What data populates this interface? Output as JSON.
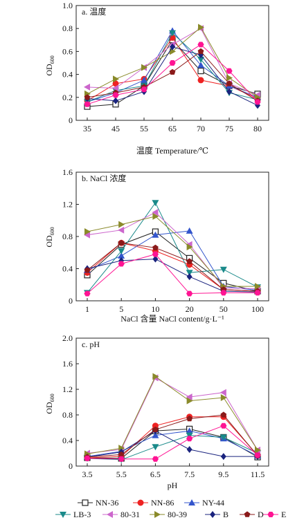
{
  "legend": {
    "entries": [
      {
        "name": "NN-36",
        "color": "#222222",
        "marker": "square-open"
      },
      {
        "name": "NN-86",
        "color": "#ee2222",
        "marker": "circle"
      },
      {
        "name": "NY-44",
        "color": "#3355cc",
        "marker": "triangle-up"
      },
      {
        "name": "LB-3",
        "color": "#1a8a8a",
        "marker": "triangle-down"
      },
      {
        "name": "80-31",
        "color": "#cc66cc",
        "marker": "triangle-left"
      },
      {
        "name": "80-39",
        "color": "#8a8a2a",
        "marker": "triangle-right"
      },
      {
        "name": "B",
        "color": "#1a237e",
        "marker": "diamond"
      },
      {
        "name": "D",
        "color": "#8b1a1a",
        "marker": "pentagon"
      },
      {
        "name": "E",
        "color": "#ff1493",
        "marker": "hexagon"
      }
    ]
  },
  "chart_data": [
    {
      "type": "line",
      "panel_label": "a. 温度",
      "xlabel": "温度 Temperature/℃",
      "ylabel": "OD",
      "ylabel_sub": "600",
      "x": [
        35,
        45,
        55,
        65,
        70,
        75,
        80
      ],
      "xticks": [
        "35",
        "45",
        "55",
        "65",
        "70",
        "75",
        "80"
      ],
      "ylim": [
        0,
        1.0
      ],
      "yticks": [
        "0",
        "0.2",
        "0.4",
        "0.6",
        "0.8",
        "1.0"
      ],
      "series": [
        {
          "name": "NN-36",
          "values": [
            0.12,
            0.14,
            0.3,
            0.7,
            0.43,
            0.3,
            0.23
          ]
        },
        {
          "name": "NN-86",
          "values": [
            0.17,
            0.32,
            0.36,
            0.72,
            0.35,
            0.3,
            0.19
          ]
        },
        {
          "name": "NY-44",
          "values": [
            0.16,
            0.24,
            0.35,
            0.78,
            0.48,
            0.3,
            0.2
          ]
        },
        {
          "name": "LB-3",
          "values": [
            0.16,
            0.26,
            0.3,
            0.76,
            0.53,
            0.24,
            0.18
          ]
        },
        {
          "name": "80-31",
          "values": [
            0.29,
            0.28,
            0.46,
            0.66,
            0.8,
            0.32,
            0.22
          ]
        },
        {
          "name": "80-39",
          "values": [
            0.23,
            0.36,
            0.46,
            0.6,
            0.81,
            0.37,
            0.2
          ]
        },
        {
          "name": "B",
          "values": [
            0.19,
            0.17,
            0.25,
            0.64,
            0.57,
            0.25,
            0.13
          ]
        },
        {
          "name": "D",
          "values": [
            0.2,
            0.24,
            0.29,
            0.42,
            0.6,
            0.32,
            0.17
          ]
        },
        {
          "name": "E",
          "values": [
            0.14,
            0.22,
            0.27,
            0.5,
            0.66,
            0.43,
            0.16
          ]
        }
      ]
    },
    {
      "type": "line",
      "panel_label": "b. NaCl 浓度",
      "xlabel": "NaCl 含量 NaCl content/g·L⁻¹",
      "ylabel": "OD",
      "ylabel_sub": "600",
      "x": [
        1,
        5,
        10,
        20,
        50,
        100
      ],
      "xticks": [
        "1",
        "5",
        "10",
        "20",
        "50",
        "100"
      ],
      "ylim": [
        0,
        1.6
      ],
      "yticks": [
        "0",
        "0.4",
        "0.8",
        "1.2",
        "1.6"
      ],
      "series": [
        {
          "name": "NN-36",
          "values": [
            0.32,
            0.7,
            0.86,
            0.53,
            0.22,
            0.12
          ]
        },
        {
          "name": "NN-86",
          "values": [
            0.35,
            0.72,
            0.62,
            0.45,
            0.14,
            0.12
          ]
        },
        {
          "name": "NY-44",
          "values": [
            0.38,
            0.56,
            0.82,
            0.87,
            0.18,
            0.13
          ]
        },
        {
          "name": "LB-3",
          "values": [
            0.1,
            0.62,
            1.22,
            0.35,
            0.39,
            0.17
          ]
        },
        {
          "name": "80-31",
          "values": [
            0.82,
            0.88,
            1.1,
            0.7,
            0.16,
            0.15
          ]
        },
        {
          "name": "80-39",
          "values": [
            0.86,
            0.95,
            1.05,
            0.67,
            0.18,
            0.18
          ]
        },
        {
          "name": "B",
          "values": [
            0.4,
            0.5,
            0.52,
            0.3,
            0.12,
            0.11
          ]
        },
        {
          "name": "D",
          "values": [
            0.38,
            0.72,
            0.66,
            0.49,
            0.14,
            0.12
          ]
        },
        {
          "name": "E",
          "values": [
            0.09,
            0.46,
            0.58,
            0.09,
            0.1,
            0.1
          ]
        }
      ]
    },
    {
      "type": "line",
      "panel_label": "c. pH",
      "xlabel": "pH",
      "ylabel": "OD",
      "ylabel_sub": "600",
      "x": [
        3.5,
        5.5,
        6.5,
        7.5,
        9.5,
        11.5
      ],
      "xticks": [
        "3.5",
        "5.5",
        "6.5",
        "7.5",
        "9.5",
        "11.5"
      ],
      "ylim": [
        0,
        2.0
      ],
      "yticks": [
        "0",
        "0.4",
        "0.8",
        "1.2",
        "1.6",
        "2.0"
      ],
      "series": [
        {
          "name": "NN-36",
          "values": [
            0.13,
            0.12,
            0.55,
            0.58,
            0.45,
            0.14
          ]
        },
        {
          "name": "NN-86",
          "values": [
            0.13,
            0.15,
            0.63,
            0.77,
            0.77,
            0.17
          ]
        },
        {
          "name": "NY-44",
          "values": [
            0.15,
            0.23,
            0.48,
            0.55,
            0.43,
            0.16
          ]
        },
        {
          "name": "LB-3",
          "values": [
            0.12,
            0.1,
            0.3,
            0.48,
            0.45,
            0.2
          ]
        },
        {
          "name": "80-31",
          "values": [
            0.2,
            0.26,
            1.38,
            1.08,
            1.15,
            0.25
          ]
        },
        {
          "name": "80-39",
          "values": [
            0.19,
            0.28,
            1.4,
            1.02,
            1.07,
            0.25
          ]
        },
        {
          "name": "B",
          "values": [
            0.14,
            0.22,
            0.55,
            0.26,
            0.15,
            0.15
          ]
        },
        {
          "name": "D",
          "values": [
            0.14,
            0.18,
            0.57,
            0.74,
            0.8,
            0.16
          ]
        },
        {
          "name": "E",
          "values": [
            0.12,
            0.11,
            0.11,
            0.43,
            0.63,
            0.17
          ]
        }
      ]
    }
  ]
}
